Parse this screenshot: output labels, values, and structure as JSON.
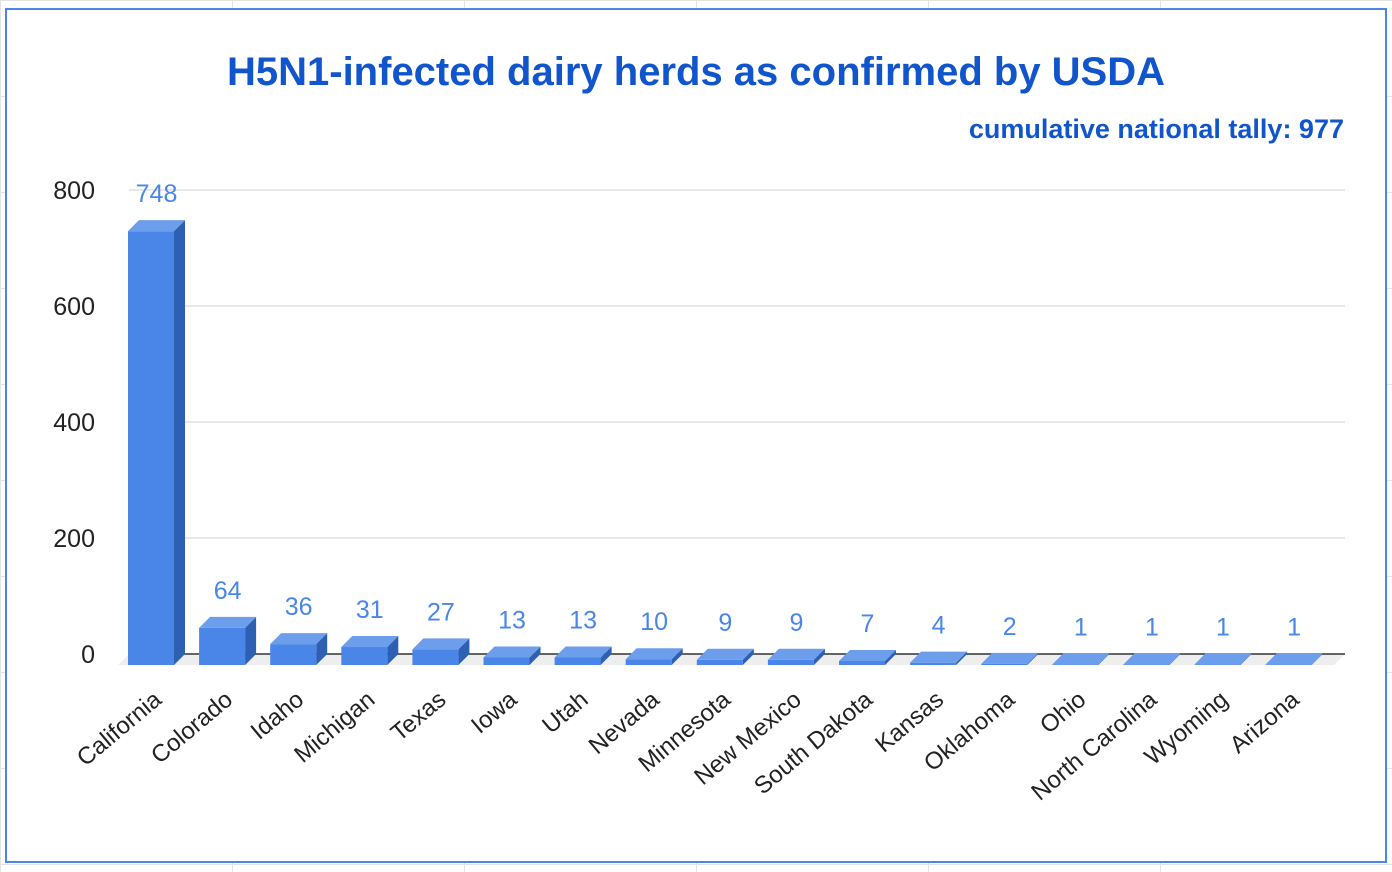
{
  "chart_data": {
    "type": "bar",
    "title": "H5N1-infected dairy herds as confirmed by USDA",
    "subtitle": "cumulative national tally: 977",
    "categories": [
      "California",
      "Colorado",
      "Idaho",
      "Michigan",
      "Texas",
      "Iowa",
      "Utah",
      "Nevada",
      "Minnesota",
      "New Mexico",
      "South Dakota",
      "Kansas",
      "Oklahoma",
      "Ohio",
      "North Carolina",
      "Wyoming",
      "Arizona"
    ],
    "series": [
      {
        "values": [
          748,
          64,
          36,
          31,
          27,
          13,
          13,
          10,
          9,
          9,
          7,
          4,
          2,
          1,
          1,
          1,
          1
        ]
      }
    ],
    "yticks": [
      "0",
      "200",
      "400",
      "600",
      "800"
    ],
    "ylim": [
      0,
      800
    ],
    "xlabel": "",
    "ylabel": "",
    "grid": true,
    "legend": "none",
    "data_labels": true,
    "style": "3d",
    "colors": {
      "bar_front": "#4a86e8",
      "bar_top": "#6d9eeb",
      "bar_side": "#2d5fb3",
      "data_label": "#4a86e8",
      "title": "#1155cc",
      "frame": "#4a86e8",
      "grid": "#d9d9d9"
    }
  }
}
